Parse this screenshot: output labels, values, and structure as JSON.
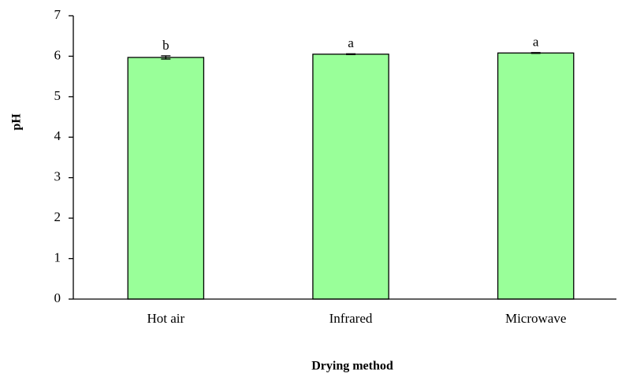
{
  "chart_data": {
    "type": "bar",
    "x_label": "Drying method",
    "y_label": "pH",
    "categories": [
      "Hot air",
      "Infrared",
      "Microwave"
    ],
    "values": [
      5.97,
      6.05,
      6.08
    ],
    "errors": [
      0.04,
      0.01,
      0.01
    ],
    "annotations": [
      "b",
      "a",
      "a"
    ],
    "color": "#99ff99",
    "ylim": [
      0,
      7
    ],
    "yticks": [
      0,
      1,
      2,
      3,
      4,
      5,
      6,
      7
    ],
    "grid": false
  }
}
